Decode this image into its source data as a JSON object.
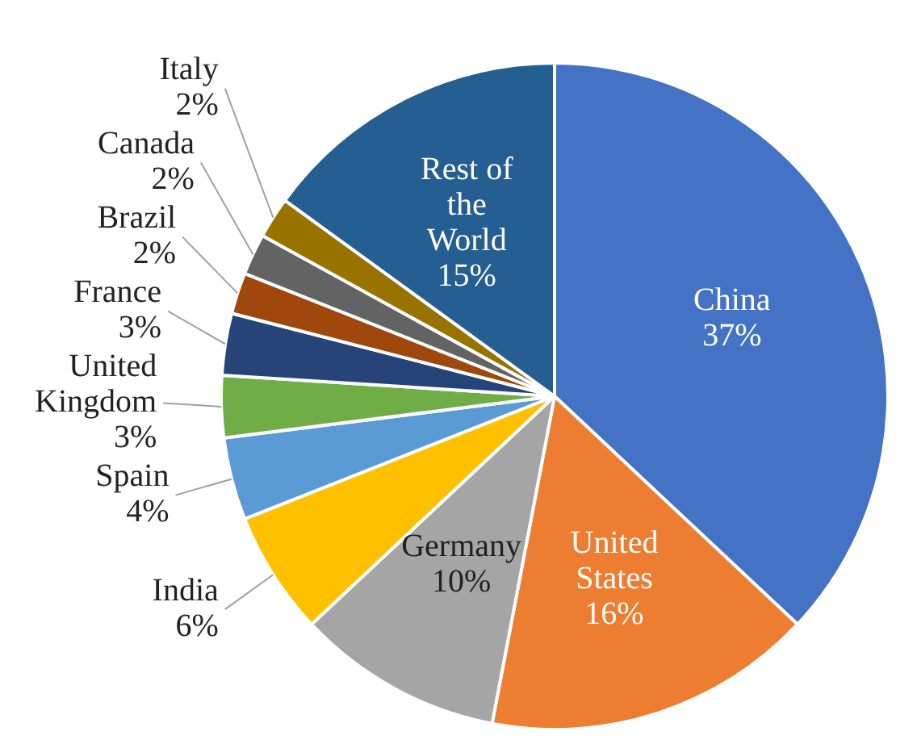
{
  "chart_data": {
    "type": "pie",
    "categories": [
      "China",
      "United States",
      "Germany",
      "India",
      "Spain",
      "United Kingdom",
      "France",
      "Brazil",
      "Canada",
      "Italy",
      "Rest of the World"
    ],
    "values": [
      37,
      16,
      10,
      6,
      4,
      3,
      3,
      2,
      2,
      2,
      15
    ],
    "value_labels": [
      "37%",
      "16%",
      "10%",
      "6%",
      "4%",
      "3%",
      "3%",
      "2%",
      "2%",
      "2%",
      "15%"
    ],
    "colors": [
      "#4472c4",
      "#ed7d31",
      "#a5a5a5",
      "#ffc000",
      "#5b9bd5",
      "#70ad47",
      "#264478",
      "#9e480e",
      "#636363",
      "#997300",
      "#255e91"
    ],
    "legend": false
  }
}
